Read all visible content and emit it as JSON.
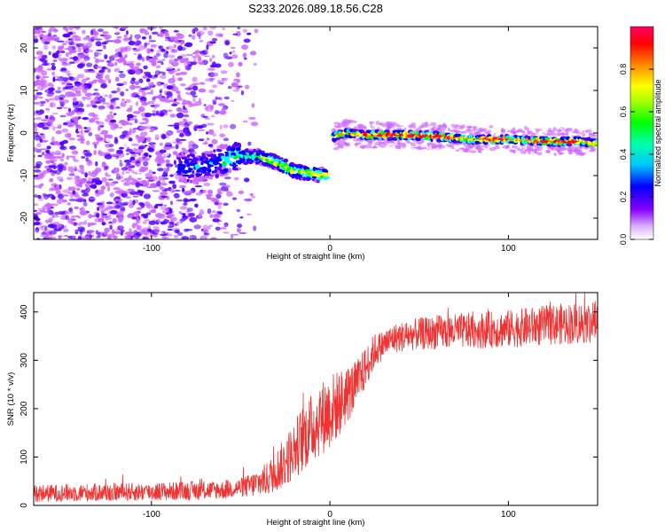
{
  "title": "S233.2026.089.18.56.C28",
  "chart_data": [
    {
      "type": "heatmap",
      "xlabel": "Height of straight line (km)",
      "ylabel": "Frequency (Hz)",
      "xlim": [
        -166,
        150
      ],
      "ylim": [
        -25,
        25
      ],
      "xticks": [
        -100,
        0,
        100
      ],
      "xtick_labels": [
        "-100",
        "0",
        "100"
      ],
      "yticks": [
        -20,
        -10,
        0,
        10,
        20
      ],
      "ytick_labels": [
        "-20",
        "-10",
        "0",
        "10",
        "20"
      ],
      "ridge": {
        "x": [
          -90,
          -75,
          -60,
          -50,
          -40,
          -30,
          -20,
          -10,
          -5,
          -1,
          0,
          2,
          5,
          10,
          20,
          40,
          60,
          80,
          100,
          120,
          140,
          150
        ],
        "y": [
          -8,
          -8,
          -6.5,
          -5.5,
          -5.5,
          -7,
          -9,
          -9.5,
          -9.8,
          -9.8,
          0,
          -1,
          -0.5,
          0,
          -0.5,
          -0.5,
          -0.8,
          -1.5,
          -1.5,
          -2,
          -2,
          -2.5
        ]
      },
      "colorbar": {
        "label": "Normalized spectral amplitude",
        "range": [
          0,
          1
        ],
        "ticks": [
          0.0,
          0.2,
          0.4,
          0.6,
          0.8
        ],
        "tick_labels": [
          "0.0",
          "0.2",
          "0.4",
          "0.6",
          "0.8"
        ],
        "colors": [
          "#ffffff",
          "#cc66ff",
          "#5500ff",
          "#0000ff",
          "#00ffff",
          "#00ff00",
          "#ffff00",
          "#ff8800",
          "#ff0000",
          "#ff0066"
        ]
      }
    },
    {
      "type": "line",
      "xlabel": "Height of straight line (km)",
      "ylabel": "SNR (10 * v/v)",
      "xlim": [
        -166,
        150
      ],
      "ylim": [
        0,
        440
      ],
      "xticks": [
        -100,
        0,
        100
      ],
      "xtick_labels": [
        "-100",
        "0",
        "100"
      ],
      "yticks": [
        0,
        100,
        200,
        300,
        400
      ],
      "ytick_labels": [
        "0",
        "100",
        "200",
        "300",
        "400"
      ],
      "color": "#ee3333",
      "trend": {
        "x": [
          -166,
          -100,
          -60,
          -45,
          -35,
          -25,
          -15,
          -5,
          5,
          15,
          25,
          35,
          50,
          70,
          100,
          130,
          150
        ],
        "y": [
          25,
          28,
          32,
          40,
          55,
          90,
          140,
          180,
          210,
          250,
          320,
          345,
          355,
          360,
          365,
          375,
          380
        ]
      },
      "noise_amplitude": {
        "x": [
          -166,
          -50,
          -35,
          -15,
          0,
          15,
          30,
          60,
          150
        ],
        "y": [
          18,
          20,
          35,
          70,
          80,
          50,
          30,
          35,
          45
        ]
      }
    }
  ]
}
